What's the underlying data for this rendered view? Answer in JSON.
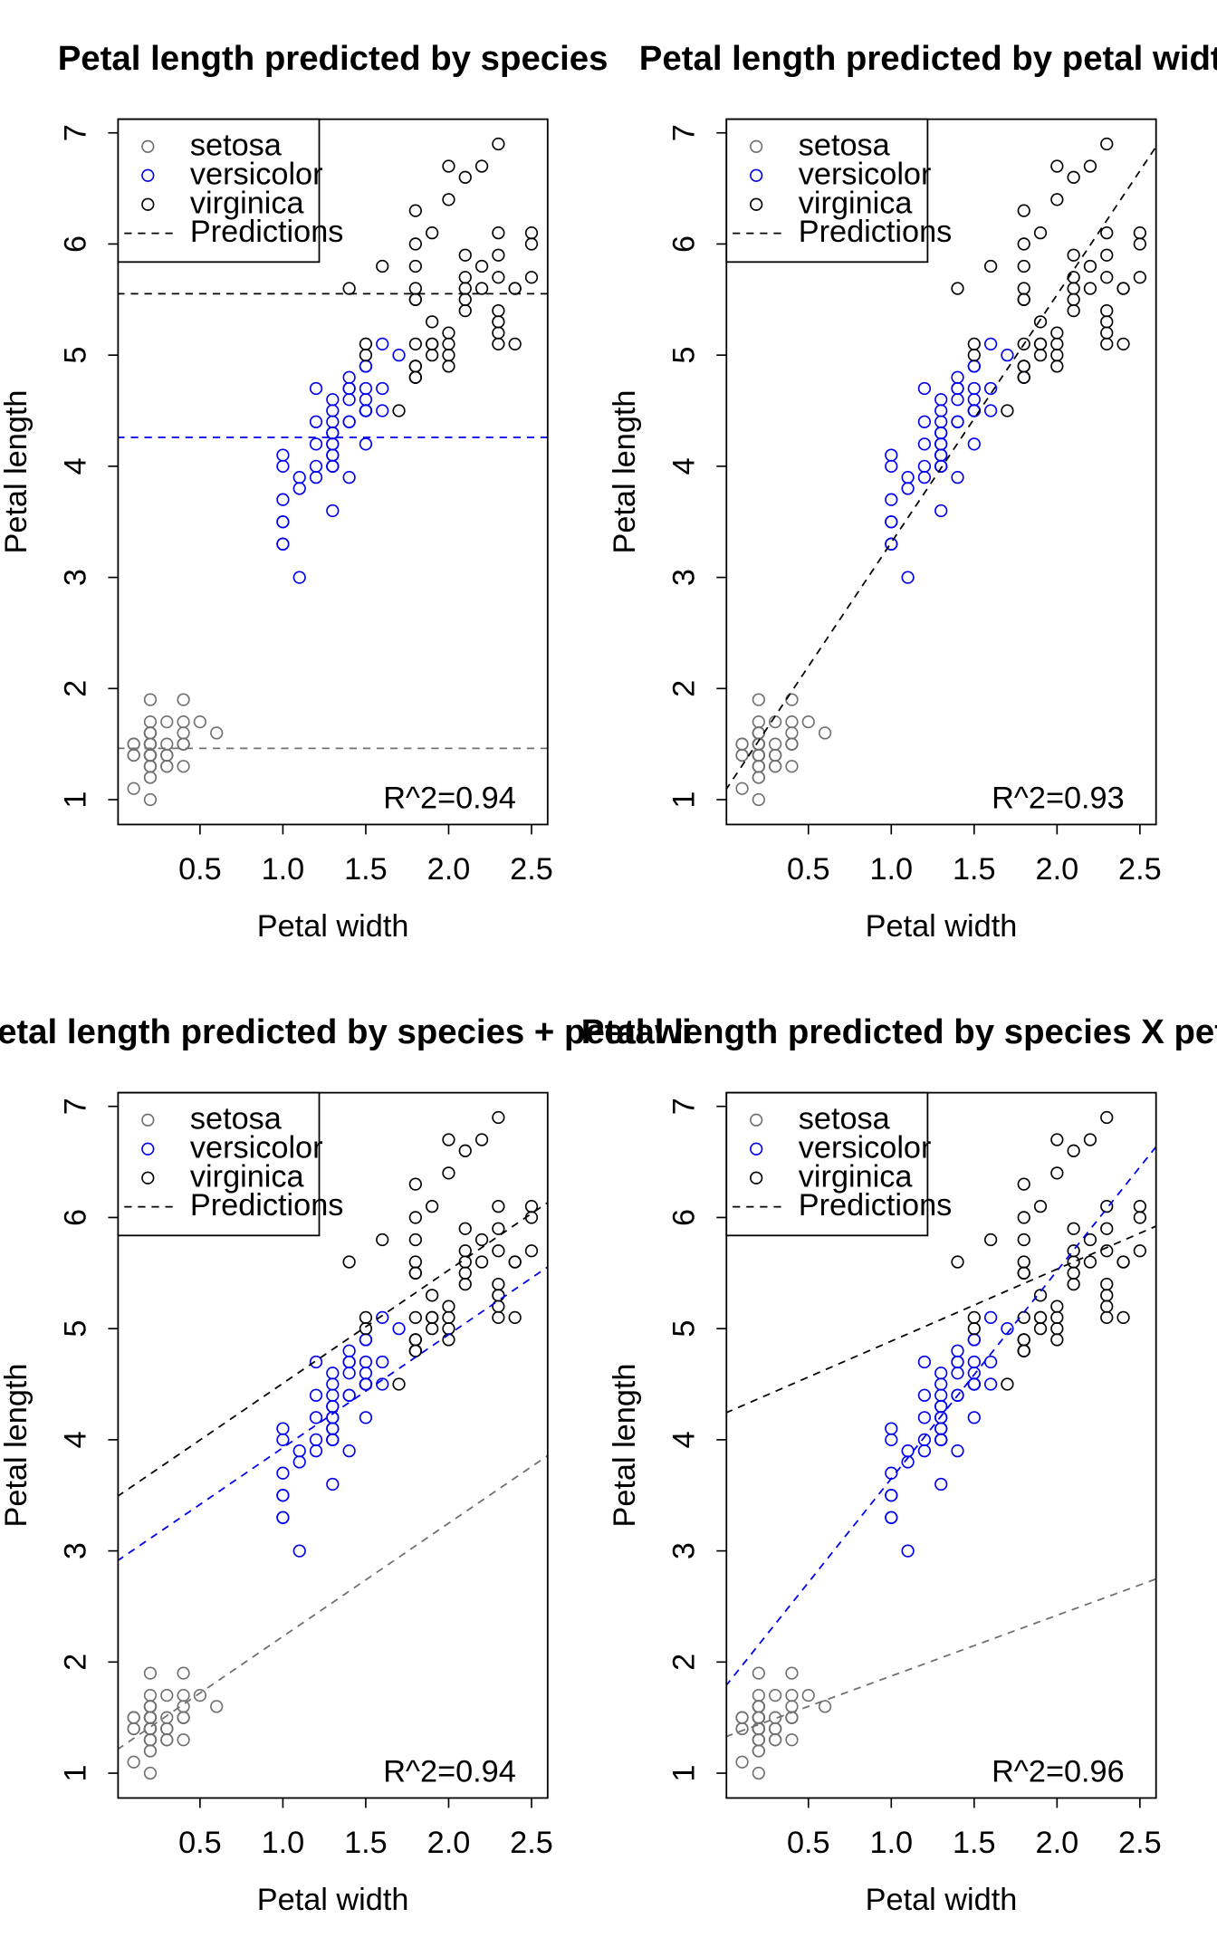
{
  "chart_data": [
    {
      "type": "scatter",
      "title": "Petal length predicted by species",
      "xlabel": "Petal width",
      "ylabel": "Petal length",
      "xlim": [
        0.1,
        2.5
      ],
      "ylim": [
        1.0,
        6.9
      ],
      "xticks": [
        "0.5",
        "1.0",
        "1.5",
        "2.0",
        "2.5"
      ],
      "yticks": [
        "1",
        "2",
        "3",
        "4",
        "5",
        "6",
        "7"
      ],
      "annotation": "R^2=0.94",
      "legend": {
        "position": "top-left",
        "entries": [
          "setosa",
          "versicolor",
          "virginica",
          "Predictions"
        ]
      },
      "lines": [
        {
          "species": "setosa",
          "intercept": 1.462,
          "slope": 0
        },
        {
          "species": "versicolor",
          "intercept": 4.26,
          "slope": 0
        },
        {
          "species": "virginica",
          "intercept": 5.552,
          "slope": 0
        }
      ]
    },
    {
      "type": "scatter",
      "title": "Petal length predicted by petal width",
      "xlabel": "Petal width",
      "ylabel": "Petal length",
      "xlim": [
        0.1,
        2.5
      ],
      "ylim": [
        1.0,
        6.9
      ],
      "xticks": [
        "0.5",
        "1.0",
        "1.5",
        "2.0",
        "2.5"
      ],
      "yticks": [
        "1",
        "2",
        "3",
        "4",
        "5",
        "6",
        "7"
      ],
      "annotation": "R^2=0.93",
      "legend": {
        "position": "top-left",
        "entries": [
          "setosa",
          "versicolor",
          "virginica",
          "Predictions"
        ]
      },
      "lines": [
        {
          "species": "all",
          "intercept": 1.0836,
          "slope": 2.2299
        }
      ]
    },
    {
      "type": "scatter",
      "title": "Petal length predicted by species + petal wi",
      "xlabel": "Petal width",
      "ylabel": "Petal length",
      "xlim": [
        0.1,
        2.5
      ],
      "ylim": [
        1.0,
        6.9
      ],
      "xticks": [
        "0.5",
        "1.0",
        "1.5",
        "2.0",
        "2.5"
      ],
      "yticks": [
        "1",
        "2",
        "3",
        "4",
        "5",
        "6",
        "7"
      ],
      "annotation": "R^2=0.94",
      "legend": {
        "position": "top-left",
        "entries": [
          "setosa",
          "versicolor",
          "virginica",
          "Predictions"
        ]
      },
      "lines": [
        {
          "species": "setosa",
          "intercept": 1.2114,
          "slope": 1.0187
        },
        {
          "species": "versicolor",
          "intercept": 2.909,
          "slope": 1.0187
        },
        {
          "species": "virginica",
          "intercept": 3.4886,
          "slope": 1.0187
        }
      ]
    },
    {
      "type": "scatter",
      "title": "Petal length predicted by species X petal wi",
      "xlabel": "Petal width",
      "ylabel": "Petal length",
      "xlim": [
        0.1,
        2.5
      ],
      "ylim": [
        1.0,
        6.9
      ],
      "xticks": [
        "0.5",
        "1.0",
        "1.5",
        "2.0",
        "2.5"
      ],
      "yticks": [
        "1",
        "2",
        "3",
        "4",
        "5",
        "6",
        "7"
      ],
      "annotation": "R^2=0.96",
      "legend": {
        "position": "top-left",
        "entries": [
          "setosa",
          "versicolor",
          "virginica",
          "Predictions"
        ]
      },
      "lines": [
        {
          "species": "setosa",
          "intercept": 1.3276,
          "slope": 0.5465
        },
        {
          "species": "versicolor",
          "intercept": 1.7813,
          "slope": 1.8693
        },
        {
          "species": "virginica",
          "intercept": 4.2406,
          "slope": 0.6473
        }
      ]
    }
  ],
  "colors": {
    "setosa": "#707070",
    "versicolor": "#0000ee",
    "virginica": "#000000"
  },
  "points": {
    "setosa": [
      [
        0.2,
        1.4
      ],
      [
        0.2,
        1.4
      ],
      [
        0.2,
        1.3
      ],
      [
        0.2,
        1.5
      ],
      [
        0.2,
        1.4
      ],
      [
        0.4,
        1.7
      ],
      [
        0.3,
        1.4
      ],
      [
        0.2,
        1.5
      ],
      [
        0.2,
        1.4
      ],
      [
        0.1,
        1.5
      ],
      [
        0.2,
        1.5
      ],
      [
        0.2,
        1.6
      ],
      [
        0.1,
        1.4
      ],
      [
        0.1,
        1.1
      ],
      [
        0.2,
        1.2
      ],
      [
        0.4,
        1.5
      ],
      [
        0.4,
        1.3
      ],
      [
        0.3,
        1.4
      ],
      [
        0.3,
        1.7
      ],
      [
        0.3,
        1.5
      ],
      [
        0.2,
        1.7
      ],
      [
        0.4,
        1.5
      ],
      [
        0.2,
        1.0
      ],
      [
        0.5,
        1.7
      ],
      [
        0.2,
        1.9
      ],
      [
        0.2,
        1.6
      ],
      [
        0.4,
        1.6
      ],
      [
        0.2,
        1.5
      ],
      [
        0.2,
        1.4
      ],
      [
        0.2,
        1.6
      ],
      [
        0.2,
        1.6
      ],
      [
        0.4,
        1.5
      ],
      [
        0.1,
        1.5
      ],
      [
        0.2,
        1.4
      ],
      [
        0.2,
        1.5
      ],
      [
        0.2,
        1.2
      ],
      [
        0.2,
        1.3
      ],
      [
        0.1,
        1.4
      ],
      [
        0.2,
        1.3
      ],
      [
        0.2,
        1.5
      ],
      [
        0.3,
        1.3
      ],
      [
        0.3,
        1.3
      ],
      [
        0.2,
        1.3
      ],
      [
        0.6,
        1.6
      ],
      [
        0.4,
        1.9
      ],
      [
        0.3,
        1.4
      ],
      [
        0.2,
        1.6
      ],
      [
        0.2,
        1.4
      ],
      [
        0.2,
        1.5
      ],
      [
        0.2,
        1.4
      ]
    ],
    "versicolor": [
      [
        1.4,
        4.7
      ],
      [
        1.5,
        4.5
      ],
      [
        1.5,
        4.9
      ],
      [
        1.3,
        4.0
      ],
      [
        1.5,
        4.6
      ],
      [
        1.3,
        4.5
      ],
      [
        1.6,
        4.7
      ],
      [
        1.0,
        3.3
      ],
      [
        1.3,
        4.6
      ],
      [
        1.4,
        3.9
      ],
      [
        1.0,
        3.5
      ],
      [
        1.5,
        4.2
      ],
      [
        1.0,
        4.0
      ],
      [
        1.4,
        4.7
      ],
      [
        1.3,
        3.6
      ],
      [
        1.4,
        4.4
      ],
      [
        1.5,
        4.5
      ],
      [
        1.0,
        4.1
      ],
      [
        1.5,
        4.5
      ],
      [
        1.1,
        3.9
      ],
      [
        1.8,
        4.8
      ],
      [
        1.3,
        4.0
      ],
      [
        1.5,
        4.9
      ],
      [
        1.2,
        4.7
      ],
      [
        1.3,
        4.3
      ],
      [
        1.4,
        4.4
      ],
      [
        1.4,
        4.8
      ],
      [
        1.7,
        5.0
      ],
      [
        1.5,
        4.5
      ],
      [
        1.0,
        3.5
      ],
      [
        1.1,
        3.8
      ],
      [
        1.0,
        3.7
      ],
      [
        1.2,
        3.9
      ],
      [
        1.6,
        5.1
      ],
      [
        1.5,
        4.5
      ],
      [
        1.6,
        4.5
      ],
      [
        1.5,
        4.7
      ],
      [
        1.3,
        4.4
      ],
      [
        1.3,
        4.1
      ],
      [
        1.3,
        4.0
      ],
      [
        1.2,
        4.4
      ],
      [
        1.4,
        4.6
      ],
      [
        1.2,
        4.0
      ],
      [
        1.0,
        3.3
      ],
      [
        1.3,
        4.2
      ],
      [
        1.2,
        4.2
      ],
      [
        1.3,
        4.2
      ],
      [
        1.3,
        4.3
      ],
      [
        1.1,
        3.0
      ],
      [
        1.3,
        4.1
      ]
    ],
    "virginica": [
      [
        2.5,
        6.0
      ],
      [
        1.9,
        5.1
      ],
      [
        2.1,
        5.9
      ],
      [
        1.8,
        5.6
      ],
      [
        2.2,
        5.8
      ],
      [
        2.1,
        6.6
      ],
      [
        1.7,
        4.5
      ],
      [
        1.8,
        6.3
      ],
      [
        1.8,
        5.8
      ],
      [
        2.5,
        6.1
      ],
      [
        2.0,
        5.1
      ],
      [
        1.9,
        5.3
      ],
      [
        2.1,
        5.5
      ],
      [
        2.0,
        5.0
      ],
      [
        2.4,
        5.1
      ],
      [
        2.3,
        5.3
      ],
      [
        1.8,
        5.5
      ],
      [
        2.2,
        6.7
      ],
      [
        2.3,
        6.9
      ],
      [
        1.5,
        5.0
      ],
      [
        2.3,
        5.7
      ],
      [
        2.0,
        4.9
      ],
      [
        2.0,
        6.7
      ],
      [
        1.8,
        4.9
      ],
      [
        2.1,
        5.7
      ],
      [
        1.8,
        6.0
      ],
      [
        1.8,
        4.8
      ],
      [
        1.8,
        4.9
      ],
      [
        2.1,
        5.6
      ],
      [
        1.6,
        5.8
      ],
      [
        1.9,
        6.1
      ],
      [
        2.0,
        6.4
      ],
      [
        2.2,
        5.6
      ],
      [
        1.5,
        5.1
      ],
      [
        1.4,
        5.6
      ],
      [
        2.3,
        6.1
      ],
      [
        2.4,
        5.6
      ],
      [
        1.8,
        5.5
      ],
      [
        1.8,
        4.8
      ],
      [
        2.1,
        5.4
      ],
      [
        2.4,
        5.6
      ],
      [
        2.3,
        5.1
      ],
      [
        1.9,
        5.1
      ],
      [
        2.3,
        5.9
      ],
      [
        2.5,
        5.7
      ],
      [
        2.3,
        5.2
      ],
      [
        1.9,
        5.0
      ],
      [
        2.0,
        5.2
      ],
      [
        2.3,
        5.4
      ],
      [
        1.8,
        5.1
      ]
    ]
  }
}
